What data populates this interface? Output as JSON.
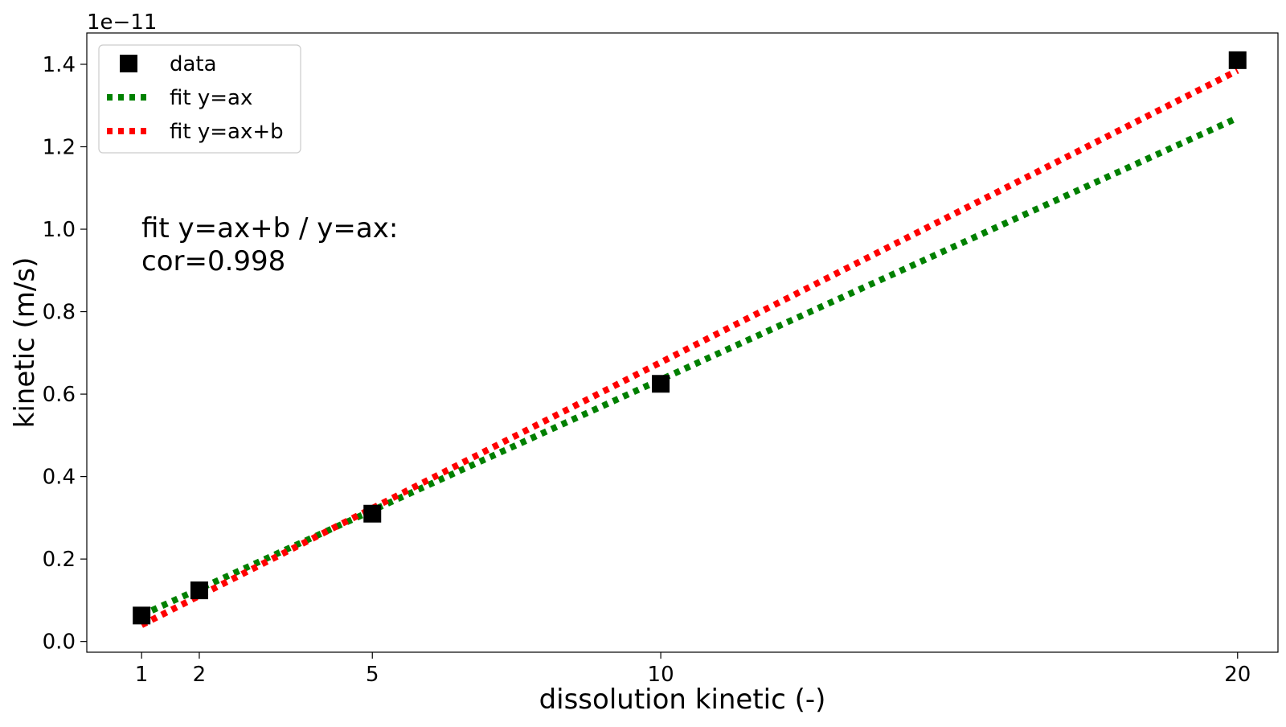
{
  "chart_data": {
    "type": "scatter",
    "xlabel": "dissolution kinetic (-)",
    "ylabel": "kinetic (m/s)",
    "y_offset_label": "1e−11",
    "y_scale": 1e-11,
    "xlim": [
      0.05,
      20.7
    ],
    "ylim": [
      -0.026,
      1.476
    ],
    "x_ticks": [
      1,
      2,
      5,
      10,
      20
    ],
    "x_tick_labels": [
      "1",
      "2",
      "5",
      "10",
      "20"
    ],
    "y_ticks": [
      0.0,
      0.2,
      0.4,
      0.6,
      0.8,
      1.0,
      1.2,
      1.4
    ],
    "y_tick_labels": [
      "0.0",
      "0.2",
      "0.4",
      "0.6",
      "0.8",
      "1.0",
      "1.2",
      "1.4"
    ],
    "grid": false,
    "legend_position": "top-left",
    "annotation": [
      "fit y=ax+b / y=ax:",
      "cor=0.998"
    ],
    "series": [
      {
        "name": "data",
        "kind": "scatter",
        "marker": "square",
        "color": "#000000",
        "x": [
          1,
          2,
          5,
          10,
          20
        ],
        "y": [
          0.063,
          0.124,
          0.31,
          0.625,
          1.41
        ]
      },
      {
        "name": "fit y=ax",
        "kind": "line",
        "style": "dotted",
        "color": "#008000",
        "x": [
          1,
          20
        ],
        "y": [
          0.064,
          1.27
        ]
      },
      {
        "name": "fit y=ax+b",
        "kind": "line",
        "style": "dotted",
        "color": "#ff0000",
        "x": [
          1,
          20
        ],
        "y": [
          0.04,
          1.385
        ]
      }
    ]
  }
}
